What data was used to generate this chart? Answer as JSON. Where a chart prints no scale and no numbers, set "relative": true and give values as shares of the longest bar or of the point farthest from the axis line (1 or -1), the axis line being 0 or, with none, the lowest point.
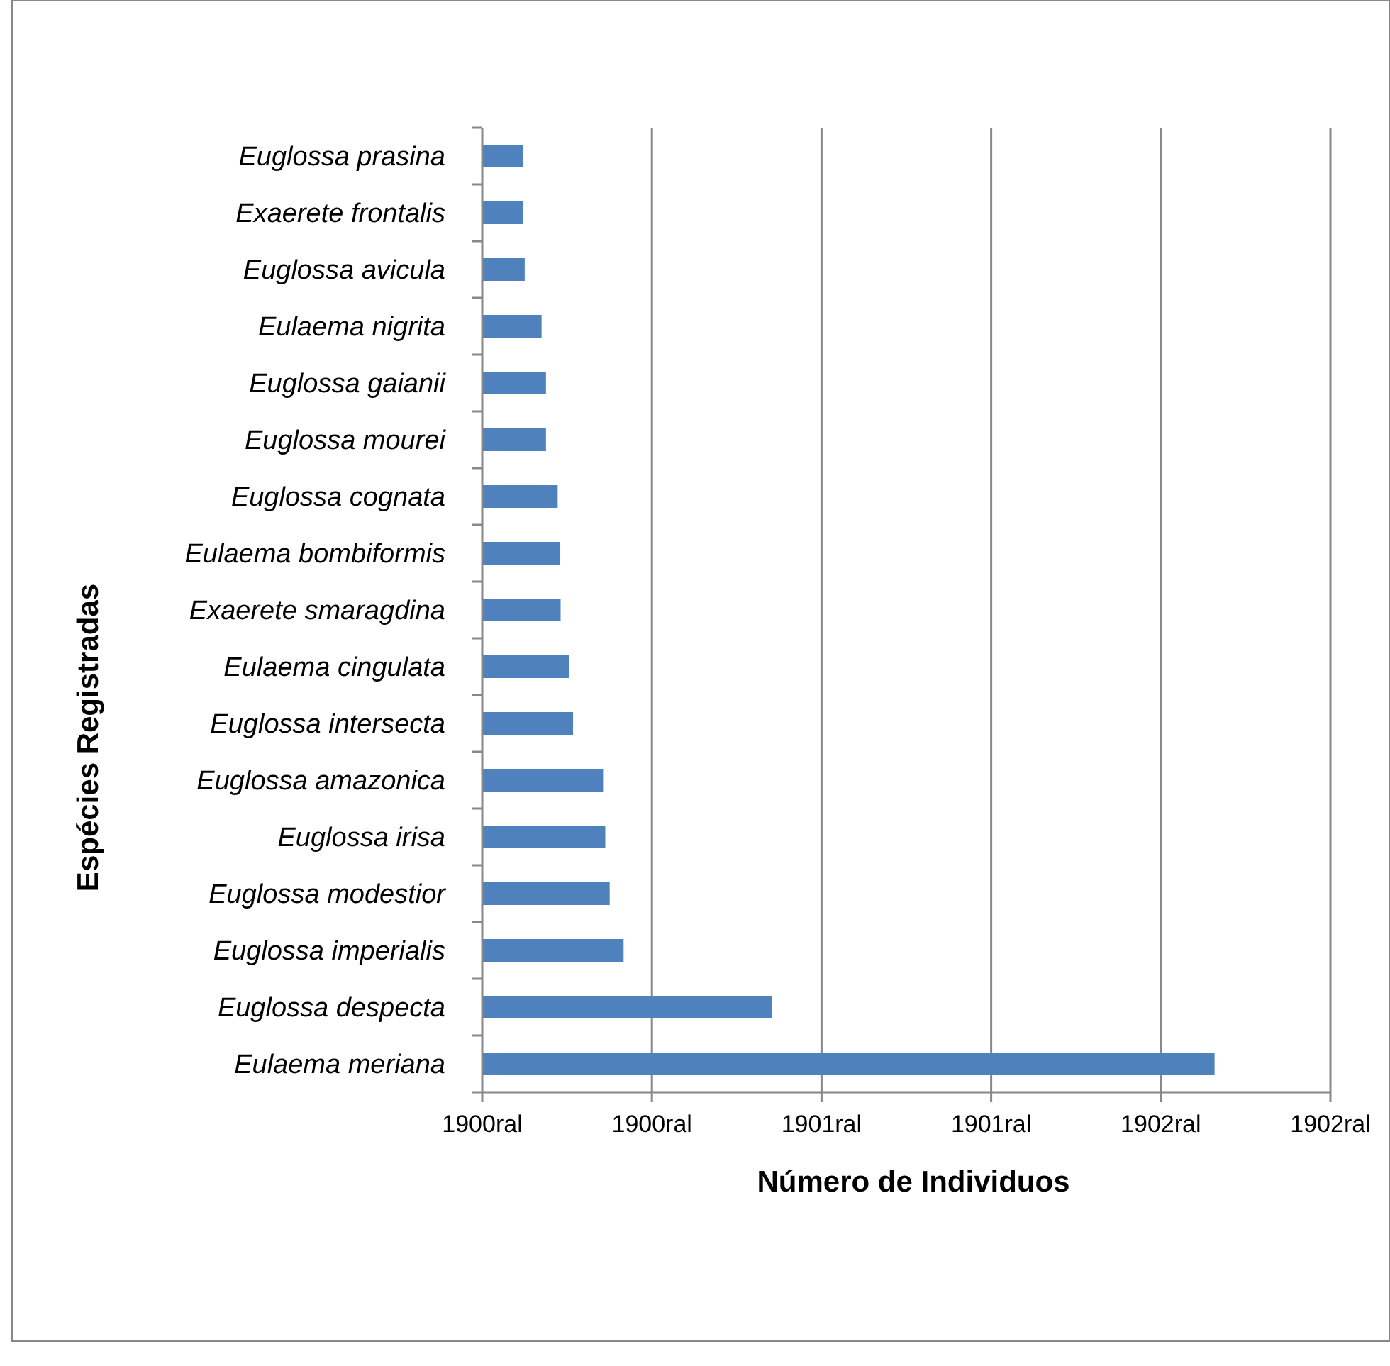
{
  "chart_data": {
    "type": "bar",
    "orientation": "horizontal",
    "xlabel": "Número de Individuos",
    "ylabel": "Espécies Registradas",
    "categories": [
      "Euglossa prasina",
      "Exaerete frontalis",
      "Euglossa avicula",
      "Eulaema nigrita",
      "Euglossa gaianii",
      "Euglossa mourei",
      "Euglossa cognata",
      "Eulaema bombiformis",
      "Exaerete smaragdina",
      "Eulaema cingulata",
      "Euglossa intersecta",
      "Euglossa amazonica",
      "Euglossa irisa",
      "Euglossa modestior",
      "Euglossa imperialis",
      "Euglossa despecta",
      "Eulaema meriana"
    ],
    "values": [
      0.056,
      0.056,
      0.058,
      0.081,
      0.087,
      0.087,
      0.103,
      0.106,
      0.107,
      0.119,
      0.124,
      0.165,
      0.168,
      0.174,
      0.193,
      0.396,
      1
    ],
    "relative": true,
    "color": "#4f81bd",
    "annotations": [
      "1900ral",
      "1900ral",
      "1901ral",
      "1901ral",
      "1902ral",
      "1902ral"
    ],
    "grid": "x"
  }
}
